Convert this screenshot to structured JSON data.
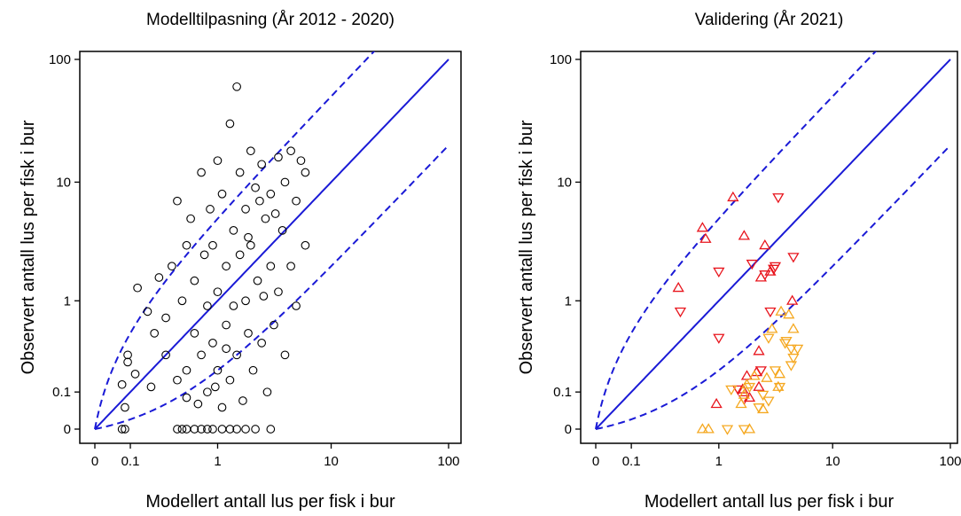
{
  "chart_data": [
    {
      "type": "scatter",
      "title": "Modelltilpasning (År 2012 - 2020)",
      "x_label": "Modellert antall lus per fisk i bur",
      "y_label": "Observert antall lus per fisk i bur",
      "log_offset": 0.1,
      "xlim": [
        0,
        100
      ],
      "ylim": [
        0,
        100
      ],
      "xticks": [
        0,
        0.1,
        1,
        10,
        100
      ],
      "yticks": [
        0,
        0.1,
        1,
        10,
        100
      ],
      "guide_factors": [
        1,
        5,
        0.2
      ],
      "guide_color": "#1a1ad6",
      "series": [
        {
          "color": "#000000",
          "marker": "circle",
          "x": [
            0.07,
            0.08,
            0.4,
            0.45,
            0.5,
            0.6,
            0.7,
            0.8,
            0.9,
            1.1,
            1.3,
            1.5,
            1.8,
            2.2,
            3,
            0.07,
            0.08,
            0.09,
            0.09,
            0.12,
            0.13,
            0.18,
            0.2,
            0.22,
            0.25,
            0.3,
            0.3,
            0.35,
            0.4,
            0.4,
            0.45,
            0.5,
            0.5,
            0.5,
            0.55,
            0.6,
            0.6,
            0.65,
            0.7,
            0.7,
            0.75,
            0.8,
            0.8,
            0.85,
            0.9,
            0.9,
            1,
            1,
            1,
            1.1,
            1.1,
            1.2,
            1.2,
            1.3,
            1.3,
            1.4,
            1.4,
            1.5,
            1.5,
            1.6,
            1.6,
            1.7,
            1.8,
            1.8,
            1.9,
            2,
            2,
            2.1,
            2.2,
            2.3,
            2.5,
            2.5,
            2.7,
            2.8,
            3,
            3,
            3.2,
            3.5,
            3.5,
            3.8,
            4,
            4,
            4.5,
            4.5,
            5,
            5,
            5.5,
            6,
            6,
            2.6,
            1.9,
            1.2,
            0.95,
            3.3,
            2.4
          ],
          "values": [
            0,
            0,
            0,
            0,
            0,
            0,
            0,
            0,
            0,
            0,
            0,
            0,
            0,
            0,
            0,
            0.13,
            0.05,
            0.3,
            0.25,
            0.18,
            1.3,
            0.8,
            0.12,
            0.5,
            1.6,
            0.3,
            0.7,
            2,
            0.15,
            7,
            1,
            0.2,
            3,
            0.08,
            5,
            0.5,
            1.5,
            0.06,
            0.3,
            12,
            2.5,
            0.9,
            0.1,
            6,
            0.4,
            3,
            0.2,
            15,
            1.2,
            0.05,
            8,
            0.6,
            2,
            30,
            0.15,
            4,
            0.9,
            60,
            0.3,
            12,
            2.5,
            0.07,
            6,
            1,
            0.5,
            18,
            3,
            0.2,
            9,
            1.5,
            0.4,
            14,
            5,
            0.1,
            2,
            8,
            0.6,
            16,
            1.2,
            4,
            0.3,
            10,
            18,
            2,
            7,
            0.9,
            15,
            12,
            3,
            1.1,
            3.5,
            0.35,
            0.12,
            5.5,
            7
          ]
        }
      ]
    },
    {
      "type": "scatter",
      "title": "Validering (År 2021)",
      "x_label": "Modellert antall lus per fisk i bur",
      "y_label": "Observert antall lus per fisk i bur",
      "log_offset": 0.1,
      "xlim": [
        0,
        100
      ],
      "ylim": [
        0,
        100
      ],
      "xticks": [
        0,
        0.1,
        1,
        10,
        100
      ],
      "yticks": [
        0,
        0.1,
        1,
        10,
        100
      ],
      "guide_factors": [
        1,
        5,
        0.2
      ],
      "guide_color": "#1a1ad6",
      "series": [
        {
          "color": "#e8141c",
          "marker": "triangle-up",
          "x": [
            0.4,
            0.7,
            0.75,
            1.35,
            1.7,
            2.4,
            2.6,
            2.9,
            4.5,
            2.3,
            2.2,
            1.8,
            2.3,
            1.65,
            0.95,
            1.9
          ],
          "values": [
            1.3,
            4.2,
            3.4,
            7.5,
            3.6,
            1.6,
            3,
            1.8,
            1,
            0.33,
            0.19,
            0.17,
            0.12,
            0.11,
            0.06,
            0.08
          ]
        },
        {
          "color": "#e8141c",
          "marker": "triangle-down",
          "x": [
            0.42,
            1,
            1,
            2,
            3.2,
            3.4,
            2.6,
            3.1,
            4.6,
            2.9,
            1.5,
            1.7,
            2.4
          ],
          "values": [
            0.8,
            1.8,
            0.45,
            2.1,
            2,
            7.5,
            1.7,
            1.9,
            2.4,
            0.8,
            0.11,
            0.075,
            0.2
          ]
        },
        {
          "color": "#f5a820",
          "marker": "triangle-up",
          "x": [
            0.7,
            0.8,
            1.9,
            1.7,
            1.6,
            2.5,
            2.7,
            3.4,
            3,
            4.6,
            4.2,
            3.5,
            2.1,
            1.8,
            3.6
          ],
          "values": [
            0,
            0,
            0,
            0.09,
            0.06,
            0.045,
            0.16,
            0.12,
            0.55,
            0.55,
            0.75,
            0.18,
            0.17,
            0.13,
            0.8
          ]
        },
        {
          "color": "#f5a820",
          "marker": "triangle-down",
          "x": [
            1.2,
            1.7,
            1.3,
            1.9,
            2.5,
            2.8,
            3.2,
            2.8,
            3.9,
            4.4,
            5,
            4.4,
            4.6,
            3.5,
            2.3,
            4
          ],
          "values": [
            0,
            0,
            0.11,
            0.12,
            0.09,
            0.07,
            0.2,
            0.45,
            0.4,
            0.35,
            0.35,
            0.23,
            0.28,
            0.12,
            0.05,
            0.42
          ]
        }
      ]
    }
  ]
}
